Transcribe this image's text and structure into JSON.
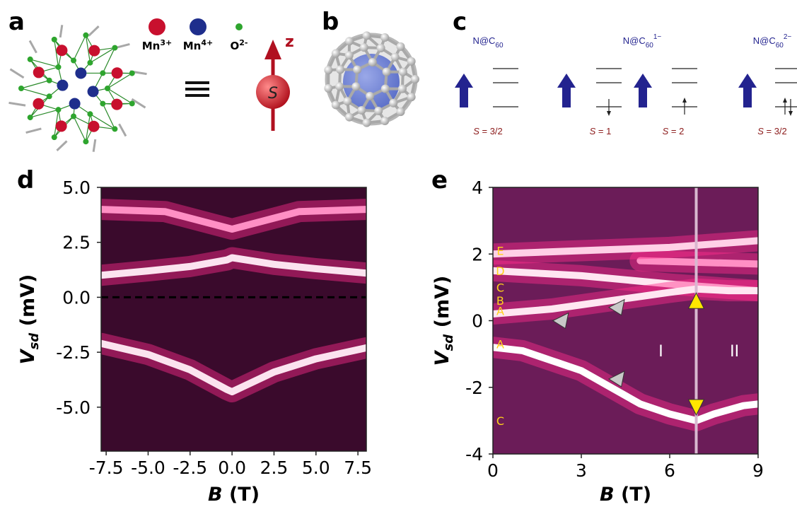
{
  "panels": {
    "a": {
      "label": "a",
      "legend": [
        {
          "symbol": "Mn",
          "charge": "3+",
          "color": "#c8102e"
        },
        {
          "symbol": "Mn",
          "charge": "4+",
          "color": "#1e2e8c"
        },
        {
          "symbol": "O",
          "charge": "2-",
          "color": "#2ea52e"
        }
      ],
      "axis_letter": "z",
      "spin_letter": "S"
    },
    "b": {
      "label": "b"
    },
    "c": {
      "label": "c",
      "titles": [
        {
          "main": "N@C",
          "subscript": "60"
        },
        {
          "main": "N@C",
          "subscript": "60",
          "charge": "1−"
        },
        {
          "main": "N@C",
          "subscript": "60",
          "charge": "2−"
        }
      ],
      "spins": [
        {
          "symbol": "S",
          "value": " = 3/2"
        },
        {
          "symbol": "S",
          "value": " = 1"
        },
        {
          "symbol": "S",
          "value": " = 2"
        },
        {
          "symbol": "S",
          "value": " = 3/2"
        }
      ]
    }
  },
  "chart_data": [
    {
      "type": "heatmap",
      "panel_label": "d",
      "xlabel": {
        "symbol": "B",
        "unit": " (T)"
      },
      "ylabel": {
        "symbol": "V",
        "subscript": "sd",
        "unit": " (mV)"
      },
      "xlim": [
        -7.8,
        8
      ],
      "ylim": [
        -7,
        5
      ],
      "xticks": [
        -7.5,
        {
          "value": -5,
          "label": "-5.0"
        },
        -2.5,
        {
          "value": 0,
          "label": "0.0"
        },
        2.5,
        {
          "value": 5,
          "label": "5.0"
        },
        7.5
      ],
      "yticks": [
        {
          "value": 5,
          "label": "5.0"
        },
        2.5,
        {
          "value": 0,
          "label": "0.0"
        },
        -2.5,
        {
          "value": -5,
          "label": "-5.0"
        }
      ],
      "background": "#3a0a2c",
      "glow_color": "#ff2d8c",
      "reference_line": 0,
      "series": [
        {
          "x": [
            -7.8,
            -4,
            -1,
            0,
            1,
            4,
            8
          ],
          "values": [
            4.0,
            3.9,
            3.3,
            3.1,
            3.3,
            3.9,
            4.0
          ],
          "color": "#ff8fc4"
        },
        {
          "x": [
            -7.8,
            -5,
            -2.5,
            -0.3,
            0,
            2.5,
            5,
            8
          ],
          "values": [
            1.0,
            1.2,
            1.4,
            1.7,
            1.8,
            1.5,
            1.3,
            1.1
          ],
          "color": "#fbe3ef"
        },
        {
          "x": [
            -7.8,
            -5,
            -2.5,
            -0.3,
            0,
            2.5,
            5,
            8
          ],
          "values": [
            -2.1,
            -2.6,
            -3.3,
            -4.2,
            -4.3,
            -3.4,
            -2.8,
            -2.3
          ],
          "color": "#fbe3ef"
        }
      ]
    },
    {
      "type": "heatmap",
      "panel_label": "e",
      "xlabel": {
        "symbol": "B",
        "unit": " (T)"
      },
      "ylabel": {
        "symbol": "V",
        "subscript": "sd",
        "unit": " (mV)"
      },
      "xlim": [
        0,
        9
      ],
      "ylim": [
        -4,
        4
      ],
      "xticks": [
        0,
        3,
        6,
        9
      ],
      "yticks": [
        4,
        2,
        0,
        -2,
        -4
      ],
      "background": "#6b1c58",
      "glow_color": "#ff2d8c",
      "marker_line": 6.9,
      "series": [
        {
          "x": [
            5,
            9
          ],
          "values": [
            1.8,
            1.7
          ],
          "color": "#ff8fc4"
        },
        {
          "x": [
            0,
            3,
            6,
            9
          ],
          "values": [
            2.0,
            2.1,
            2.2,
            2.4
          ],
          "color": "#ffd0e6"
        },
        {
          "x": [
            0,
            3,
            6,
            9
          ],
          "values": [
            1.5,
            1.35,
            1.1,
            0.9
          ],
          "color": "#ffe6f1"
        },
        {
          "x": [
            0,
            2,
            4,
            6,
            6.9,
            8,
            9
          ],
          "values": [
            0.2,
            0.35,
            0.6,
            0.85,
            0.95,
            0.9,
            0.9
          ],
          "color": "#ffe6f1"
        },
        {
          "x": [
            0,
            1,
            2,
            3,
            4,
            5,
            6,
            6.9,
            7.5,
            8.5,
            9
          ],
          "values": [
            -0.8,
            -0.9,
            -1.2,
            -1.5,
            -2.0,
            -2.5,
            -2.8,
            -3.0,
            -2.8,
            -2.55,
            -2.5
          ],
          "color": "#ffffff"
        }
      ],
      "letters": [
        {
          "text": "E",
          "x": 0.25,
          "y": 2.1
        },
        {
          "text": "D",
          "x": 0.25,
          "y": 1.5
        },
        {
          "text": "C",
          "x": 0.25,
          "y": 1.0
        },
        {
          "text": "B",
          "x": 0.25,
          "y": 0.6
        },
        {
          "text": "A",
          "x": 0.25,
          "y": 0.3
        },
        {
          "text": "A",
          "x": 0.25,
          "y": -0.7
        },
        {
          "text": "C",
          "x": 0.25,
          "y": -3.0
        }
      ],
      "numerals": [
        {
          "text": "I",
          "x": 5.7,
          "y": -0.9
        },
        {
          "text": "II",
          "x": 8.2,
          "y": -0.9
        }
      ],
      "arrows": [
        {
          "x": 2.3,
          "y": 0.0,
          "direction": "left",
          "color": "#c8c8c8"
        },
        {
          "x": 4.2,
          "y": 0.4,
          "direction": "left",
          "color": "#c8c8c8"
        },
        {
          "x": 4.2,
          "y": -1.75,
          "direction": "left",
          "color": "#c8c8c8"
        },
        {
          "x": 6.9,
          "y": 0.6,
          "direction": "up",
          "color": "#ffe600"
        },
        {
          "x": 6.9,
          "y": -2.6,
          "direction": "down",
          "color": "#ffe600"
        }
      ]
    }
  ]
}
